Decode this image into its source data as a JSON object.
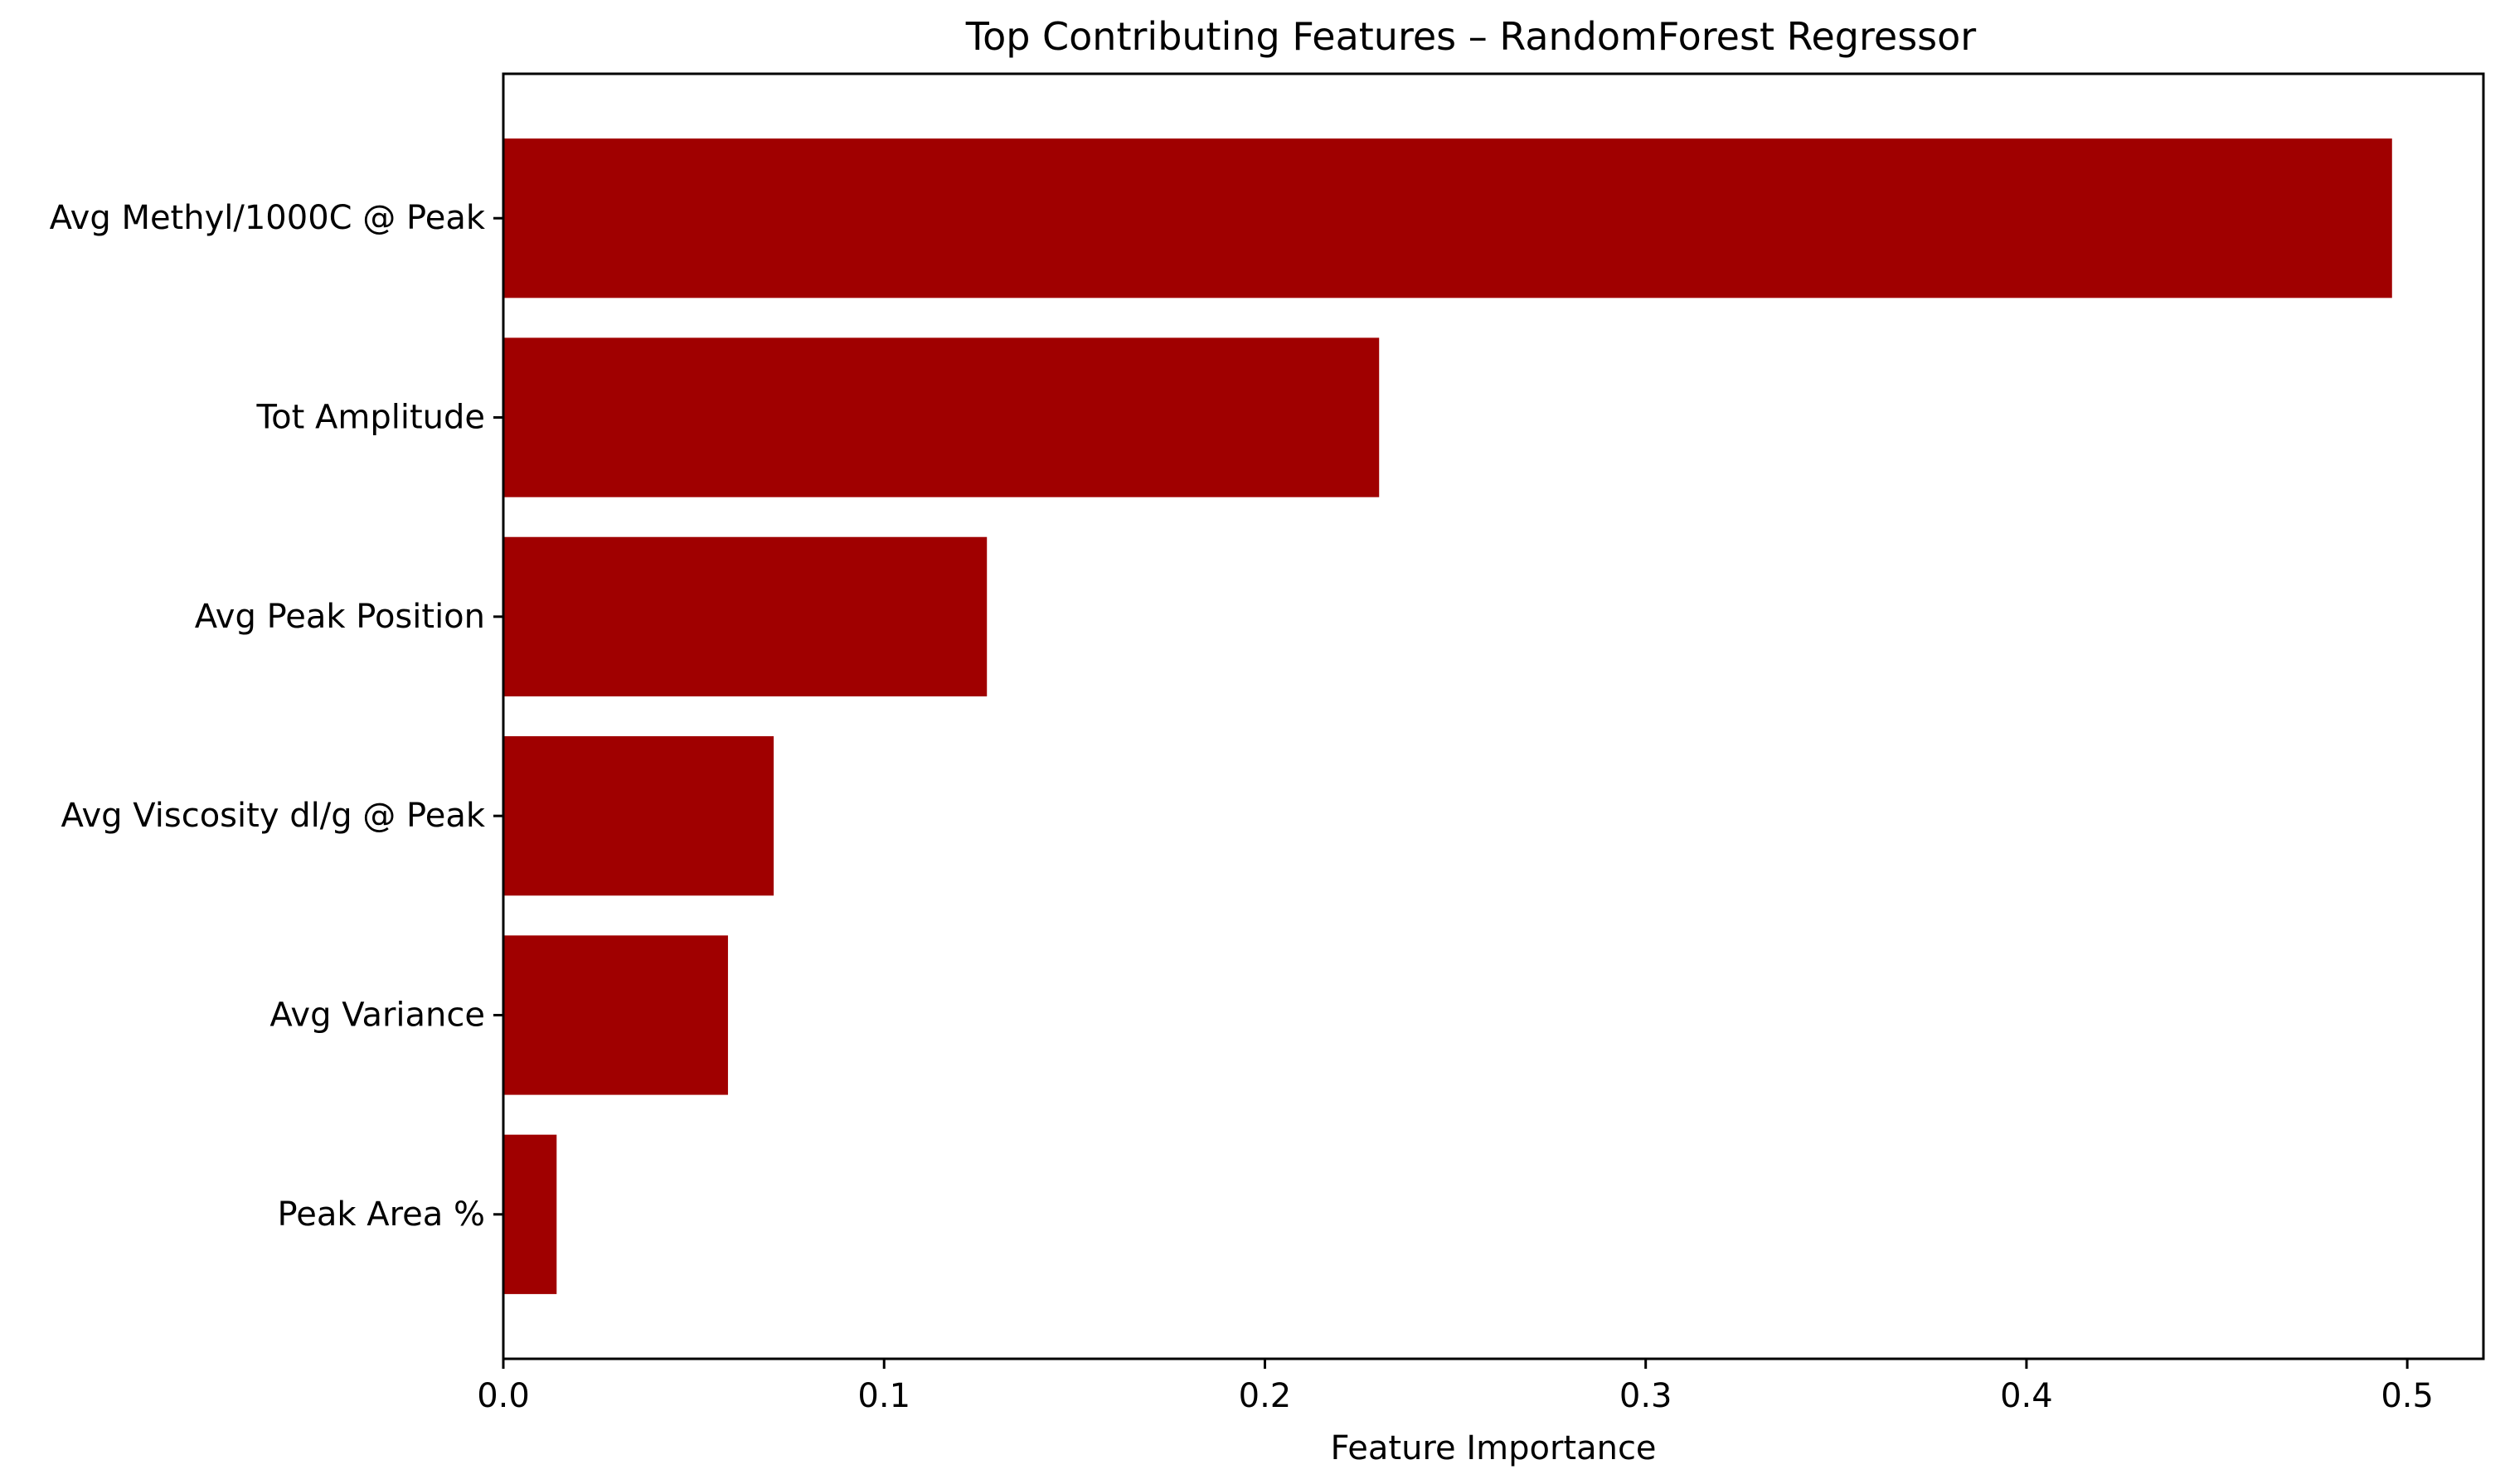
{
  "chart_data": {
    "type": "bar",
    "orientation": "horizontal",
    "title": "Top Contributing Features – RandomForest Regressor",
    "xlabel": "Feature Importance",
    "ylabel": "",
    "categories": [
      "Avg Methyl/1000C @ Peak",
      "Tot Amplitude",
      "Avg Peak Position",
      "Avg Viscosity dl/g @ Peak",
      "Avg Variance",
      "Peak Area %"
    ],
    "values": [
      0.496,
      0.23,
      0.127,
      0.071,
      0.059,
      0.014
    ],
    "xlim": [
      0.0,
      0.52
    ],
    "xticks": [
      "0.0",
      "0.1",
      "0.2",
      "0.3",
      "0.4",
      "0.5"
    ],
    "bar_color": "#a00000",
    "grid": false,
    "legend": "none"
  }
}
